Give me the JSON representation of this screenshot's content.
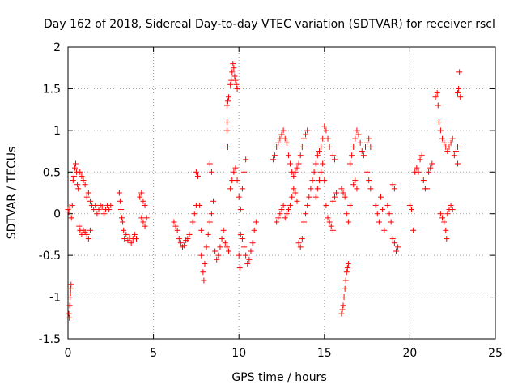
{
  "chart_data": {
    "type": "scatter",
    "title": "Day 162 of 2018, Sidereal Day-to-day VTEC variation (SDTVAR) for receiver rscl",
    "xlabel": "GPS time / hours",
    "ylabel": "SDTVAR / TECUs",
    "xlim": [
      0,
      25
    ],
    "ylim": [
      -1.5,
      2
    ],
    "xticks": [
      0,
      5,
      10,
      15,
      20,
      25
    ],
    "xtick_labels": [
      "0",
      "5",
      "10",
      "15",
      "20",
      "25"
    ],
    "yticks": [
      -1.5,
      -1,
      -0.5,
      0,
      0.5,
      1,
      1.5,
      2
    ],
    "ytick_labels": [
      "-1.5",
      "-1",
      "-0.5",
      "0",
      "0.5",
      "1",
      "1.5",
      "2"
    ],
    "grid": true,
    "marker": "+",
    "color": "#ff0000",
    "series": [
      {
        "name": "SDTVAR",
        "points": [
          [
            0.0,
            0.05
          ],
          [
            0.05,
            0.02
          ],
          [
            0.1,
            0.08
          ],
          [
            0.05,
            -1.2
          ],
          [
            0.08,
            -1.25
          ],
          [
            0.1,
            -1.1
          ],
          [
            0.12,
            -1.0
          ],
          [
            0.15,
            -0.9
          ],
          [
            0.18,
            -0.85
          ],
          [
            0.15,
            -0.95
          ],
          [
            0.2,
            -0.05
          ],
          [
            0.25,
            0.1
          ],
          [
            0.3,
            0.4
          ],
          [
            0.35,
            0.45
          ],
          [
            0.4,
            0.55
          ],
          [
            0.45,
            0.6
          ],
          [
            0.5,
            0.5
          ],
          [
            0.55,
            0.35
          ],
          [
            0.6,
            0.3
          ],
          [
            0.65,
            -0.15
          ],
          [
            0.7,
            -0.2
          ],
          [
            0.8,
            -0.25
          ],
          [
            0.9,
            -0.2
          ],
          [
            1.0,
            -0.22
          ],
          [
            1.1,
            -0.25
          ],
          [
            1.2,
            -0.3
          ],
          [
            1.3,
            -0.2
          ],
          [
            0.7,
            0.5
          ],
          [
            0.8,
            0.45
          ],
          [
            0.9,
            0.4
          ],
          [
            1.0,
            0.35
          ],
          [
            1.1,
            0.2
          ],
          [
            1.2,
            0.25
          ],
          [
            1.3,
            0.15
          ],
          [
            1.4,
            0.1
          ],
          [
            1.5,
            0.05
          ],
          [
            1.6,
            0.1
          ],
          [
            1.7,
            0.0
          ],
          [
            1.8,
            0.05
          ],
          [
            1.9,
            0.1
          ],
          [
            2.0,
            0.08
          ],
          [
            2.1,
            0.0
          ],
          [
            2.2,
            0.05
          ],
          [
            2.3,
            0.1
          ],
          [
            2.4,
            0.05
          ],
          [
            2.5,
            0.1
          ],
          [
            3.0,
            0.25
          ],
          [
            3.05,
            0.15
          ],
          [
            3.1,
            0.05
          ],
          [
            3.15,
            -0.05
          ],
          [
            3.2,
            -0.1
          ],
          [
            3.25,
            -0.2
          ],
          [
            3.3,
            -0.3
          ],
          [
            3.4,
            -0.25
          ],
          [
            3.5,
            -0.32
          ],
          [
            3.6,
            -0.28
          ],
          [
            3.7,
            -0.35
          ],
          [
            3.8,
            -0.3
          ],
          [
            3.9,
            -0.25
          ],
          [
            4.0,
            -0.3
          ],
          [
            4.2,
            0.2
          ],
          [
            4.3,
            0.25
          ],
          [
            4.4,
            0.15
          ],
          [
            4.5,
            0.1
          ],
          [
            4.3,
            -0.05
          ],
          [
            4.4,
            -0.1
          ],
          [
            4.5,
            -0.15
          ],
          [
            4.6,
            -0.05
          ],
          [
            6.2,
            -0.1
          ],
          [
            6.3,
            -0.15
          ],
          [
            6.4,
            -0.2
          ],
          [
            6.5,
            -0.3
          ],
          [
            6.6,
            -0.35
          ],
          [
            6.7,
            -0.4
          ],
          [
            6.8,
            -0.38
          ],
          [
            6.9,
            -0.32
          ],
          [
            7.0,
            -0.3
          ],
          [
            7.1,
            -0.25
          ],
          [
            7.3,
            -0.1
          ],
          [
            7.4,
            0.0
          ],
          [
            7.5,
            0.1
          ],
          [
            7.5,
            0.5
          ],
          [
            7.6,
            0.45
          ],
          [
            7.7,
            0.1
          ],
          [
            7.8,
            -0.2
          ],
          [
            7.8,
            -0.5
          ],
          [
            7.9,
            -0.7
          ],
          [
            7.95,
            -0.8
          ],
          [
            8.0,
            -0.6
          ],
          [
            8.1,
            -0.4
          ],
          [
            8.2,
            -0.25
          ],
          [
            8.3,
            -0.1
          ],
          [
            8.4,
            0.0
          ],
          [
            8.5,
            0.15
          ],
          [
            8.3,
            0.6
          ],
          [
            8.4,
            0.5
          ],
          [
            8.6,
            -0.45
          ],
          [
            8.7,
            -0.55
          ],
          [
            8.8,
            -0.5
          ],
          [
            8.9,
            -0.4
          ],
          [
            9.0,
            -0.3
          ],
          [
            9.1,
            -0.2
          ],
          [
            9.2,
            -0.35
          ],
          [
            9.3,
            -0.4
          ],
          [
            9.4,
            -0.45
          ],
          [
            9.5,
            0.3
          ],
          [
            9.6,
            0.4
          ],
          [
            9.7,
            0.5
          ],
          [
            9.8,
            0.55
          ],
          [
            9.9,
            0.4
          ],
          [
            10.0,
            0.2
          ],
          [
            9.3,
            1.3
          ],
          [
            9.35,
            1.35
          ],
          [
            9.4,
            1.4
          ],
          [
            9.5,
            1.55
          ],
          [
            9.55,
            1.6
          ],
          [
            9.6,
            1.7
          ],
          [
            9.65,
            1.8
          ],
          [
            9.7,
            1.75
          ],
          [
            9.75,
            1.65
          ],
          [
            9.8,
            1.6
          ],
          [
            9.85,
            1.55
          ],
          [
            9.9,
            1.5
          ],
          [
            9.3,
            1.1
          ],
          [
            9.35,
            0.8
          ],
          [
            9.3,
            1.0
          ],
          [
            10.1,
            -0.25
          ],
          [
            10.2,
            -0.3
          ],
          [
            10.3,
            -0.4
          ],
          [
            10.4,
            -0.5
          ],
          [
            10.5,
            -0.6
          ],
          [
            10.6,
            -0.55
          ],
          [
            10.7,
            -0.45
          ],
          [
            10.8,
            -0.35
          ],
          [
            10.9,
            -0.2
          ],
          [
            11.0,
            -0.1
          ],
          [
            10.0,
            -0.5
          ],
          [
            10.05,
            -0.65
          ],
          [
            10.1,
            0.05
          ],
          [
            10.2,
            0.3
          ],
          [
            10.3,
            0.5
          ],
          [
            10.4,
            0.65
          ],
          [
            12.0,
            0.65
          ],
          [
            12.1,
            0.7
          ],
          [
            12.2,
            0.8
          ],
          [
            12.3,
            0.85
          ],
          [
            12.4,
            0.9
          ],
          [
            12.5,
            0.95
          ],
          [
            12.6,
            1.0
          ],
          [
            12.7,
            0.9
          ],
          [
            12.8,
            0.85
          ],
          [
            12.9,
            0.7
          ],
          [
            13.0,
            0.6
          ],
          [
            13.1,
            0.5
          ],
          [
            13.2,
            0.45
          ],
          [
            13.3,
            0.5
          ],
          [
            13.4,
            0.55
          ],
          [
            13.5,
            0.6
          ],
          [
            13.6,
            0.7
          ],
          [
            13.7,
            0.8
          ],
          [
            13.8,
            0.9
          ],
          [
            13.9,
            0.95
          ],
          [
            14.0,
            1.0
          ],
          [
            12.2,
            -0.1
          ],
          [
            12.3,
            -0.05
          ],
          [
            12.4,
            0.0
          ],
          [
            12.5,
            0.05
          ],
          [
            12.6,
            0.1
          ],
          [
            12.7,
            -0.05
          ],
          [
            12.8,
            0.0
          ],
          [
            12.9,
            0.05
          ],
          [
            13.0,
            0.1
          ],
          [
            13.1,
            0.2
          ],
          [
            13.2,
            0.3
          ],
          [
            13.3,
            0.25
          ],
          [
            13.4,
            0.15
          ],
          [
            13.5,
            -0.35
          ],
          [
            13.6,
            -0.4
          ],
          [
            13.7,
            -0.3
          ],
          [
            13.8,
            -0.1
          ],
          [
            13.9,
            0.0
          ],
          [
            14.0,
            0.1
          ],
          [
            14.1,
            0.2
          ],
          [
            14.2,
            0.3
          ],
          [
            14.3,
            0.4
          ],
          [
            14.4,
            0.5
          ],
          [
            14.5,
            0.6
          ],
          [
            14.6,
            0.7
          ],
          [
            14.7,
            0.75
          ],
          [
            14.8,
            0.8
          ],
          [
            14.9,
            0.9
          ],
          [
            15.0,
            1.05
          ],
          [
            15.1,
            1.0
          ],
          [
            15.2,
            0.9
          ],
          [
            15.3,
            0.8
          ],
          [
            14.5,
            0.2
          ],
          [
            14.6,
            0.3
          ],
          [
            14.7,
            0.4
          ],
          [
            14.8,
            0.5
          ],
          [
            14.9,
            0.6
          ],
          [
            15.0,
            0.4
          ],
          [
            15.1,
            0.1
          ],
          [
            15.2,
            -0.05
          ],
          [
            15.3,
            -0.1
          ],
          [
            15.4,
            -0.15
          ],
          [
            15.5,
            -0.2
          ],
          [
            15.5,
            0.15
          ],
          [
            15.6,
            0.2
          ],
          [
            15.7,
            0.25
          ],
          [
            15.5,
            0.7
          ],
          [
            15.6,
            0.65
          ],
          [
            16.0,
            0.3
          ],
          [
            16.1,
            0.25
          ],
          [
            16.2,
            0.2
          ],
          [
            16.3,
            0.0
          ],
          [
            16.4,
            -0.1
          ],
          [
            16.5,
            0.1
          ],
          [
            16.0,
            -1.2
          ],
          [
            16.05,
            -1.15
          ],
          [
            16.1,
            -1.1
          ],
          [
            16.15,
            -1.0
          ],
          [
            16.2,
            -0.9
          ],
          [
            16.25,
            -0.8
          ],
          [
            16.3,
            -0.7
          ],
          [
            16.35,
            -0.65
          ],
          [
            16.4,
            -0.6
          ],
          [
            16.5,
            0.6
          ],
          [
            16.6,
            0.7
          ],
          [
            16.7,
            0.8
          ],
          [
            16.8,
            0.9
          ],
          [
            16.9,
            1.0
          ],
          [
            17.0,
            0.95
          ],
          [
            17.1,
            0.85
          ],
          [
            17.2,
            0.75
          ],
          [
            17.3,
            0.7
          ],
          [
            17.4,
            0.8
          ],
          [
            17.5,
            0.85
          ],
          [
            17.6,
            0.9
          ],
          [
            17.7,
            0.8
          ],
          [
            16.7,
            0.35
          ],
          [
            16.8,
            0.4
          ],
          [
            16.9,
            0.3
          ],
          [
            17.5,
            0.5
          ],
          [
            17.6,
            0.4
          ],
          [
            17.7,
            0.3
          ],
          [
            18.0,
            0.1
          ],
          [
            18.1,
            0.0
          ],
          [
            18.2,
            -0.1
          ],
          [
            18.3,
            0.2
          ],
          [
            18.4,
            0.05
          ],
          [
            18.5,
            -0.2
          ],
          [
            18.7,
            0.1
          ],
          [
            18.8,
            0.0
          ],
          [
            18.9,
            -0.1
          ],
          [
            19.0,
            -0.3
          ],
          [
            19.1,
            -0.35
          ],
          [
            19.2,
            -0.45
          ],
          [
            19.3,
            -0.4
          ],
          [
            19.0,
            0.35
          ],
          [
            19.1,
            0.3
          ],
          [
            20.0,
            0.1
          ],
          [
            20.1,
            0.05
          ],
          [
            20.2,
            -0.2
          ],
          [
            20.3,
            0.5
          ],
          [
            20.4,
            0.55
          ],
          [
            20.5,
            0.5
          ],
          [
            20.6,
            0.65
          ],
          [
            20.7,
            0.7
          ],
          [
            20.8,
            0.4
          ],
          [
            20.9,
            0.3
          ],
          [
            21.0,
            0.3
          ],
          [
            21.1,
            0.5
          ],
          [
            21.2,
            0.55
          ],
          [
            21.3,
            0.6
          ],
          [
            21.5,
            1.4
          ],
          [
            21.6,
            1.45
          ],
          [
            21.65,
            1.3
          ],
          [
            21.7,
            1.1
          ],
          [
            21.8,
            1.0
          ],
          [
            21.9,
            0.9
          ],
          [
            22.0,
            0.85
          ],
          [
            22.1,
            0.8
          ],
          [
            22.2,
            0.75
          ],
          [
            22.3,
            0.8
          ],
          [
            22.4,
            0.85
          ],
          [
            22.5,
            0.9
          ],
          [
            22.6,
            0.7
          ],
          [
            22.7,
            0.75
          ],
          [
            22.8,
            0.8
          ],
          [
            21.8,
            0.0
          ],
          [
            21.9,
            -0.05
          ],
          [
            22.0,
            -0.1
          ],
          [
            22.1,
            -0.2
          ],
          [
            22.15,
            -0.3
          ],
          [
            22.2,
            0.0
          ],
          [
            22.3,
            0.05
          ],
          [
            22.4,
            0.1
          ],
          [
            22.5,
            0.05
          ],
          [
            22.8,
            1.45
          ],
          [
            22.85,
            1.5
          ],
          [
            22.9,
            1.7
          ],
          [
            22.95,
            1.4
          ],
          [
            22.8,
            0.6
          ]
        ]
      }
    ]
  }
}
